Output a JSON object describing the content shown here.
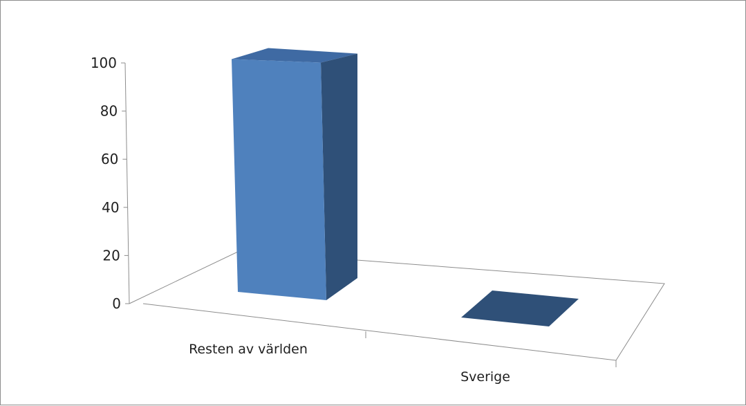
{
  "chart_data": {
    "type": "bar",
    "title": "",
    "xlabel": "",
    "ylabel": "",
    "ylim": [
      0,
      100
    ],
    "yticks": [
      0,
      20,
      40,
      60,
      80,
      100
    ],
    "yticklabels": [
      "0",
      "20",
      "40",
      "60",
      "80",
      "100"
    ],
    "categories": [
      "Resten av världen",
      "Sverige"
    ],
    "values": [
      99,
      0
    ],
    "grid": false,
    "legend": false,
    "colors": {
      "bar_front": "#4f81bd",
      "bar_side": "#2f5078",
      "bar_top": "#3f6aa3",
      "axis": "#8c8c8c"
    }
  }
}
